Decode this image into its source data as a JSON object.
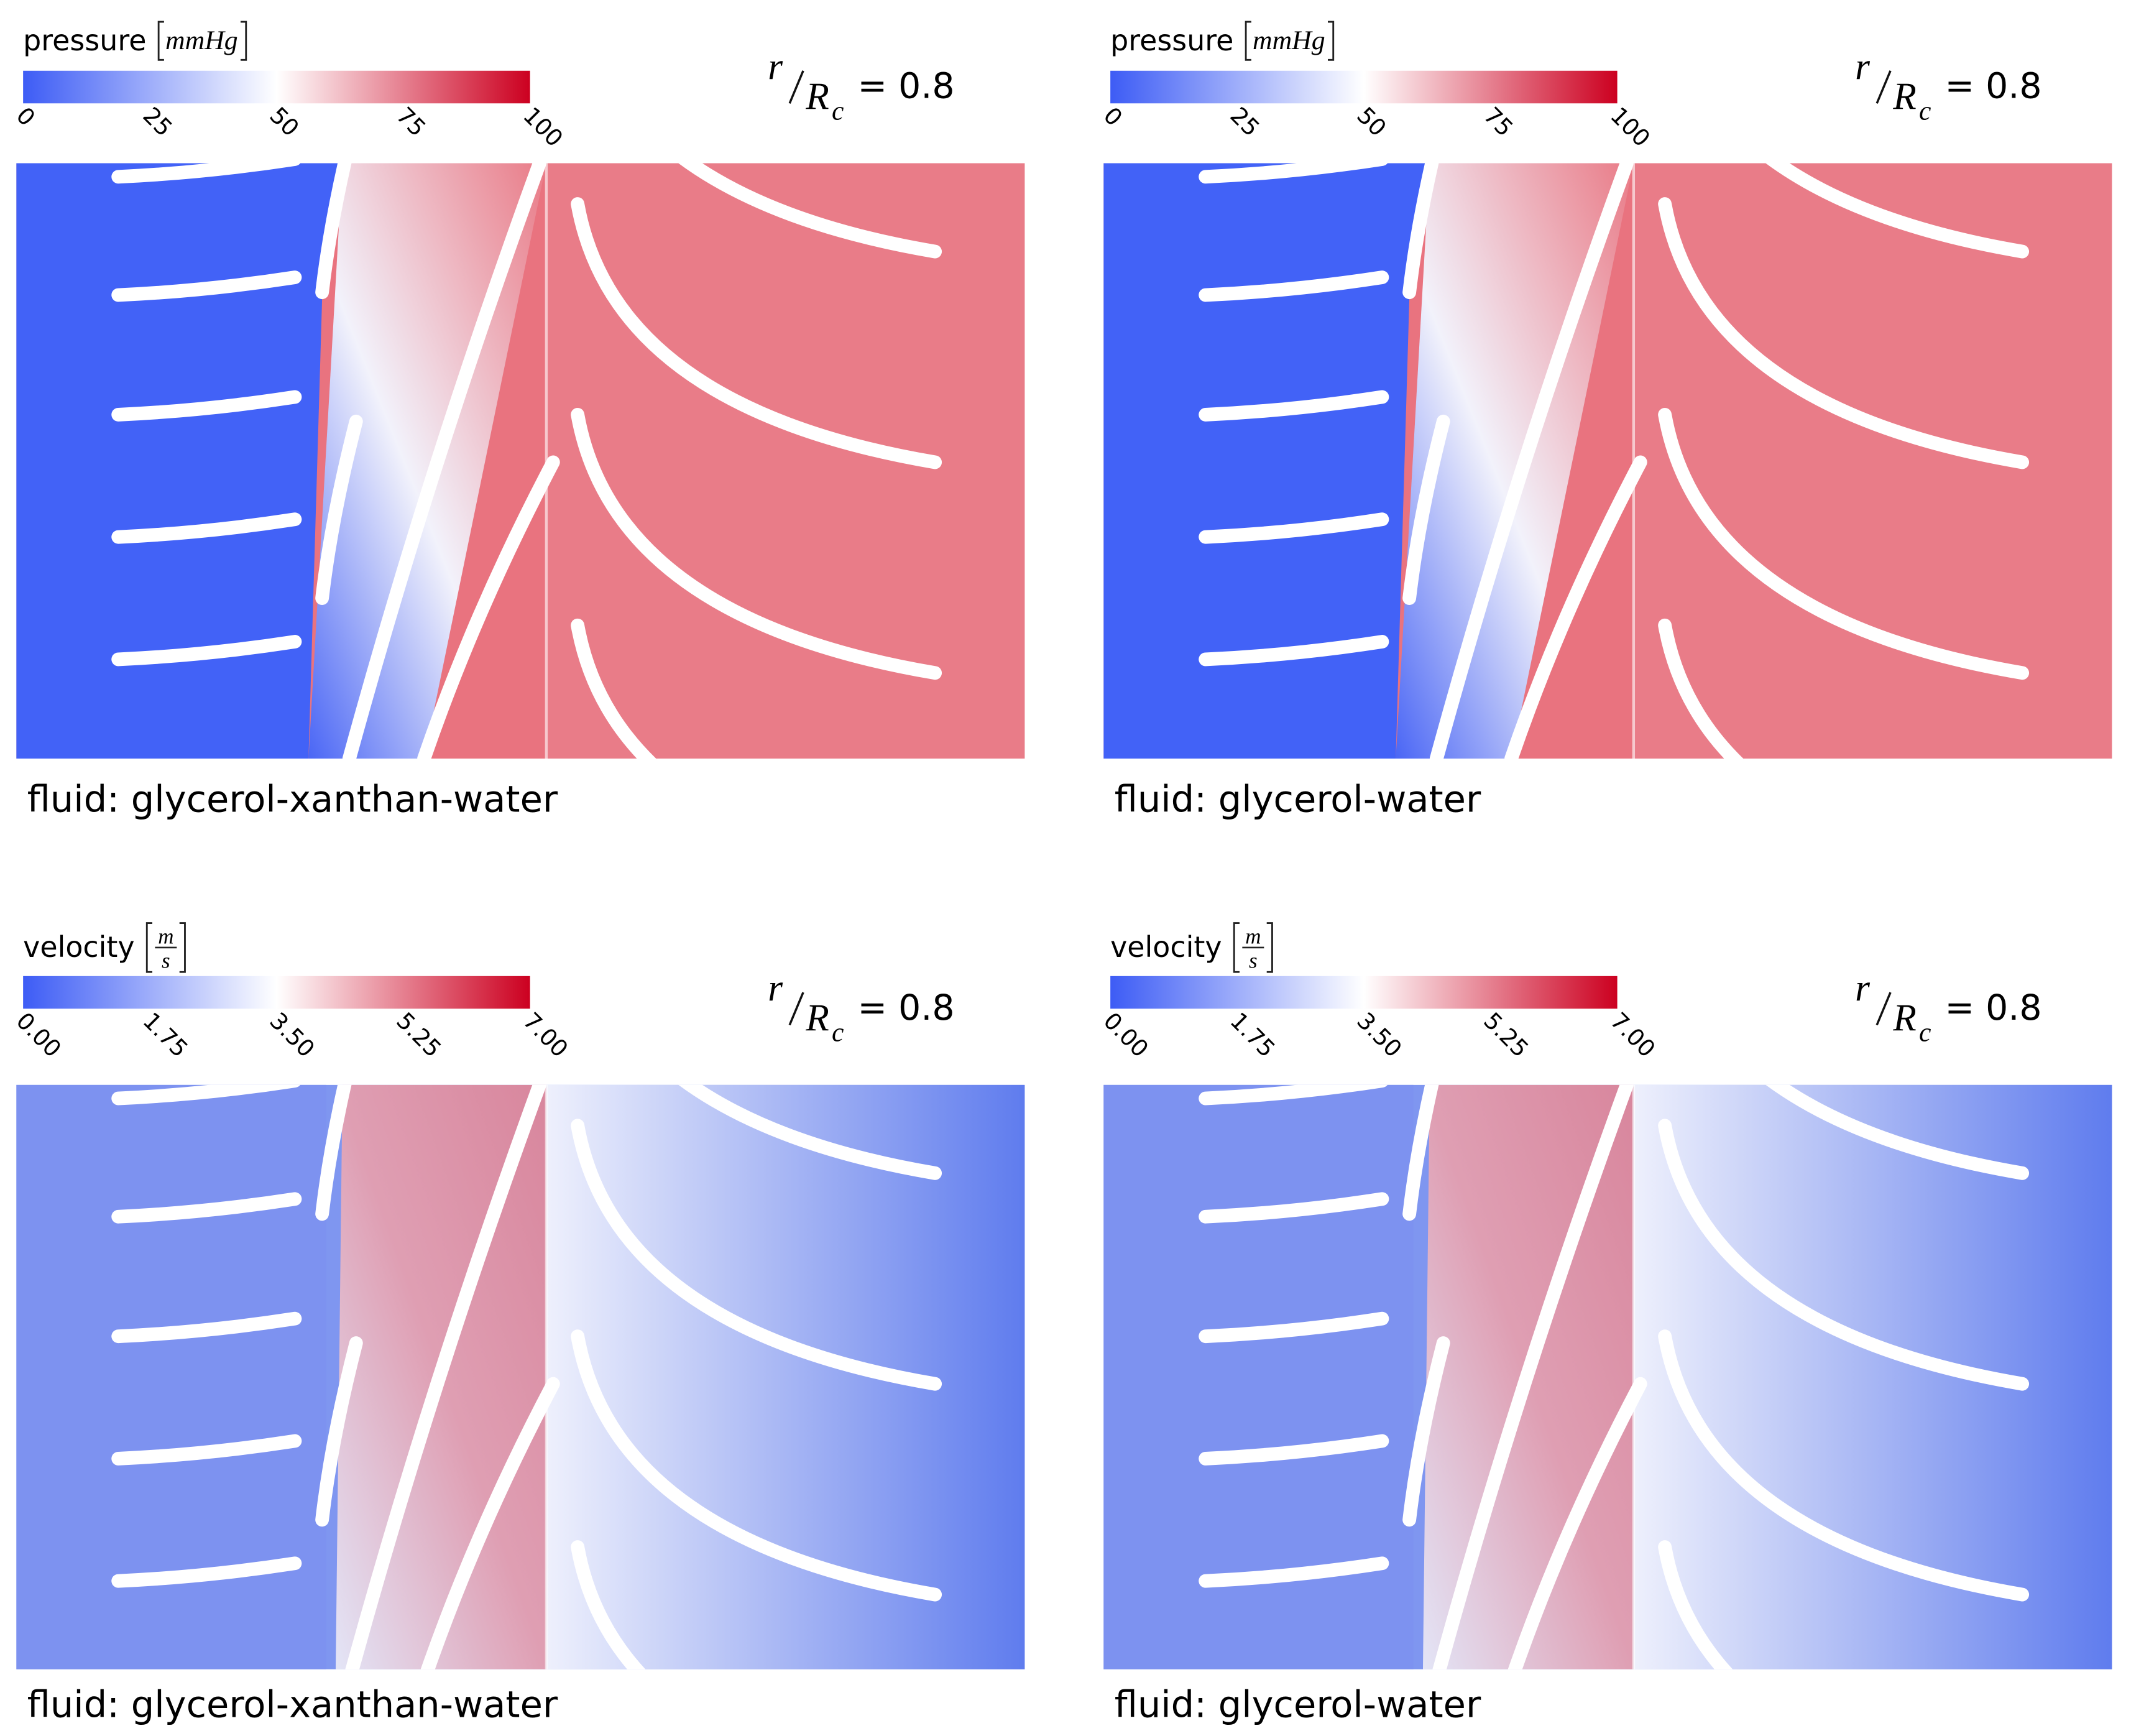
{
  "panels": [
    {
      "colorbar": {
        "label": "pressure",
        "unit": "mmHg",
        "ticks": [
          "0",
          "25",
          "50",
          "75",
          "100"
        ]
      },
      "annotation": {
        "numerator": "r",
        "denominator": "R",
        "subscript": "c",
        "relation": "= 0.8"
      },
      "caption": "fluid: glycerol-xanthan-water"
    },
    {
      "colorbar": {
        "label": "pressure",
        "unit": "mmHg",
        "ticks": [
          "0",
          "25",
          "50",
          "75",
          "100"
        ]
      },
      "annotation": {
        "numerator": "r",
        "denominator": "R",
        "subscript": "c",
        "relation": "= 0.8"
      },
      "caption": "fluid: glycerol-water"
    },
    {
      "colorbar": {
        "label": "velocity",
        "unit": {
          "numerator": "m",
          "denominator": "s"
        },
        "ticks": [
          "0.00",
          "1.75",
          "3.50",
          "5.25",
          "7.00"
        ]
      },
      "annotation": {
        "numerator": "r",
        "denominator": "R",
        "subscript": "c",
        "relation": "= 0.8"
      },
      "caption": "fluid: glycerol-xanthan-water"
    },
    {
      "colorbar": {
        "label": "velocity",
        "unit": {
          "numerator": "m",
          "denominator": "s"
        },
        "ticks": [
          "0.00",
          "1.75",
          "3.50",
          "5.25",
          "7.00"
        ]
      },
      "annotation": {
        "numerator": "r",
        "denominator": "R",
        "subscript": "c",
        "relation": "= 0.8"
      },
      "caption": "fluid: glycerol-water"
    }
  ]
}
